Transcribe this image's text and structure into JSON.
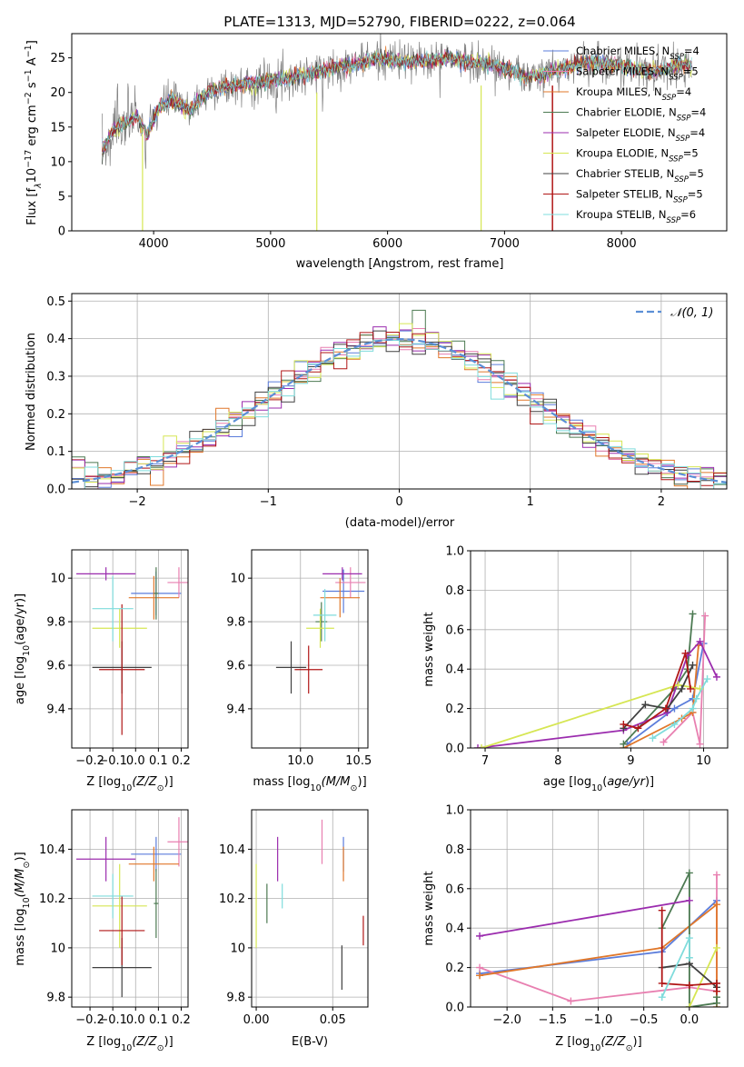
{
  "title": "PLATE=1313, MJD=52790, FIBERID=0222, z=0.064",
  "colors": {
    "Chabrier MILES": "#5b7ddb",
    "Salpeter MILES": "#e87fb0",
    "Kroupa MILES": "#e0772a",
    "Chabrier ELODIE": "#4c7a52",
    "Salpeter ELODIE": "#9b2cae",
    "Kroupa ELODIE": "#d6e653",
    "Chabrier STELIB": "#404040",
    "Salpeter STELIB": "#b01616",
    "Kroupa STELIB": "#7fdcdc"
  },
  "chart_data": [
    {
      "id": "spectrum",
      "type": "line",
      "xlabel": "wavelength [Angstrom, rest frame]",
      "ylabel_pre": "Flux [f",
      "ylabel_sub1": "λ",
      "ylabel_mid": "10",
      "ylabel_sup1": "−17",
      "ylabel_mid2": " erg cm",
      "ylabel_sup2": "−2",
      "ylabel_mid3": " s",
      "ylabel_sup3": "−1",
      "ylabel_mid4": " A",
      "ylabel_sup4": "−1",
      "ylabel_end": "]",
      "xlim": [
        3300,
        8900
      ],
      "ylim": [
        0,
        28.5
      ],
      "xticks": [
        4000,
        5000,
        6000,
        7000,
        8000
      ],
      "yticks": [
        0,
        5,
        10,
        15,
        20,
        25
      ],
      "legend_loc": "right",
      "legend": [
        {
          "name": "Chabrier MILES",
          "nssp": "4"
        },
        {
          "name": "Salpeter MILES",
          "nssp": "5"
        },
        {
          "name": "Kroupa MILES",
          "nssp": "4"
        },
        {
          "name": "Chabrier ELODIE",
          "nssp": "4"
        },
        {
          "name": "Salpeter ELODIE",
          "nssp": "4"
        },
        {
          "name": "Kroupa ELODIE",
          "nssp": "5"
        },
        {
          "name": "Chabrier STELIB",
          "nssp": "5"
        },
        {
          "name": "Salpeter STELIB",
          "nssp": "5"
        },
        {
          "name": "Kroupa STELIB",
          "nssp": "6"
        }
      ],
      "legend_fmt": ", N",
      "legend_sub": "SSP",
      "legend_eq": "=",
      "continuum": {
        "x": [
          3560,
          3650,
          3750,
          3850,
          3950,
          4050,
          4150,
          4300,
          4500,
          4700,
          4900,
          5100,
          5300,
          5500,
          5700,
          5900,
          6100,
          6300,
          6500,
          6700,
          6900,
          7100,
          7200,
          7300,
          7500,
          7700,
          7900,
          8100,
          8300,
          8500,
          8600
        ],
        "y": [
          11.5,
          14.5,
          15.5,
          16.5,
          14.0,
          18.0,
          19.0,
          17.5,
          20.5,
          21.0,
          21.5,
          22.0,
          22.5,
          23.5,
          24.0,
          25.0,
          24.5,
          24.5,
          25.0,
          24.5,
          24.0,
          23.0,
          22.0,
          22.5,
          23.5,
          24.5,
          24.0,
          23.5,
          23.0,
          24.0,
          24.0
        ]
      }
    },
    {
      "id": "residuals",
      "type": "histogram",
      "xlabel": "(data-model)/error",
      "ylabel": "Normed distribution",
      "xlim": [
        -2.5,
        2.5
      ],
      "ylim": [
        0,
        0.52
      ],
      "xticks": [
        -2,
        -1,
        0,
        1,
        2
      ],
      "xticklabels": [
        "−2",
        "−1",
        "0",
        "1",
        "2"
      ],
      "yticks": [
        0.0,
        0.1,
        0.2,
        0.3,
        0.4,
        0.5
      ],
      "yticklabels": [
        "0.0",
        "0.1",
        "0.2",
        "0.3",
        "0.4",
        "0.5"
      ],
      "bin_width": 0.1,
      "legend_label": "𝒩(0, 1)",
      "legend_loc": "upper right"
    },
    {
      "id": "age-vs-Z",
      "type": "errorbar",
      "xlabel_pre": "Z [log",
      "xlabel_sub": "10",
      "xlabel_end": "(Z/Z",
      "ylabel_pre": "age  [log",
      "ylabel_sub": "10",
      "ylabel_end": "(age/yr)]",
      "xlim": [
        -0.28,
        0.23
      ],
      "ylim": [
        9.22,
        10.13
      ],
      "xticks": [
        -0.2,
        -0.1,
        0.0,
        0.1,
        0.2
      ],
      "xticklabels": [
        "−0.2",
        "−0.1",
        "0.0",
        "0.1",
        "0.2"
      ],
      "yticks": [
        9.4,
        9.6,
        9.8,
        10.0
      ],
      "points": [
        {
          "name": "Chabrier MILES",
          "x": 0.09,
          "xerr": 0.11,
          "y": 9.93,
          "yerr": 0.1
        },
        {
          "name": "Salpeter MILES",
          "x": 0.19,
          "xerr": 0.05,
          "y": 9.98,
          "yerr": 0.07
        },
        {
          "name": "Kroupa MILES",
          "x": 0.08,
          "xerr": 0.11,
          "y": 9.91,
          "yerr": 0.1
        },
        {
          "name": "Chabrier ELODIE",
          "x": 0.09,
          "xerr": 0.01,
          "y": 9.93,
          "yerr": 0.12
        },
        {
          "name": "Salpeter ELODIE",
          "x": -0.13,
          "xerr": 0.13,
          "y": 10.02,
          "yerr": 0.03
        },
        {
          "name": "Kroupa ELODIE",
          "x": -0.07,
          "xerr": 0.12,
          "y": 9.77,
          "yerr": 0.09
        },
        {
          "name": "Chabrier STELIB",
          "x": -0.06,
          "xerr": 0.13,
          "y": 9.59,
          "yerr": 0.12
        },
        {
          "name": "Salpeter STELIB",
          "x": -0.06,
          "xerr": 0.1,
          "y": 9.58,
          "yerr": 0.3
        },
        {
          "name": "Kroupa STELIB",
          "x": -0.1,
          "xerr": 0.09,
          "y": 9.86,
          "yerr": 0.15
        }
      ]
    },
    {
      "id": "age-vs-mass",
      "type": "errorbar",
      "xlabel_pre": "mass [log",
      "xlabel_sub": "10",
      "xlabel_end": "(M/M",
      "xlim": [
        9.58,
        10.58
      ],
      "ylim": [
        9.22,
        10.13
      ],
      "xticks": [
        10.0,
        10.5
      ],
      "xticklabels": [
        "10.0",
        "10.5"
      ],
      "yticks": [
        9.4,
        9.6,
        9.8,
        10.0
      ],
      "points": [
        {
          "name": "Chabrier MILES",
          "x": 10.37,
          "xerr": 0.18,
          "y": 9.94,
          "yerr": 0.1
        },
        {
          "name": "Salpeter MILES",
          "x": 10.43,
          "xerr": 0.13,
          "y": 9.98,
          "yerr": 0.07
        },
        {
          "name": "Kroupa MILES",
          "x": 10.34,
          "xerr": 0.17,
          "y": 9.91,
          "yerr": 0.09
        },
        {
          "name": "Chabrier ELODIE",
          "x": 10.18,
          "xerr": 0.05,
          "y": 9.8,
          "yerr": 0.09
        },
        {
          "name": "Salpeter ELODIE",
          "x": 10.36,
          "xerr": 0.17,
          "y": 10.02,
          "yerr": 0.03
        },
        {
          "name": "Kroupa ELODIE",
          "x": 10.17,
          "xerr": 0.12,
          "y": 9.77,
          "yerr": 0.09
        },
        {
          "name": "Chabrier STELIB",
          "x": 9.92,
          "xerr": 0.13,
          "y": 9.59,
          "yerr": 0.12
        },
        {
          "name": "Salpeter STELIB",
          "x": 10.07,
          "xerr": 0.12,
          "y": 9.58,
          "yerr": 0.11
        },
        {
          "name": "Kroupa STELIB",
          "x": 10.21,
          "xerr": 0.1,
          "y": 9.83,
          "yerr": 0.12
        }
      ]
    },
    {
      "id": "weight-vs-age",
      "type": "line",
      "xlabel_pre": "age  [log",
      "xlabel_sub": "10",
      "xlabel_end": "(age/yr)]",
      "ylabel": "mass weight",
      "xlim": [
        6.8,
        10.33
      ],
      "ylim": [
        0,
        1
      ],
      "xticks": [
        7,
        8,
        9,
        10
      ],
      "yticks": [
        0.0,
        0.2,
        0.4,
        0.6,
        0.8,
        1.0
      ],
      "yticklabels": [
        "0.0",
        "0.2",
        "0.4",
        "0.6",
        "0.8",
        "1.0"
      ],
      "series": [
        {
          "name": "Chabrier MILES",
          "x": [
            8.95,
            9.6,
            9.85,
            10.0
          ],
          "y": [
            0.02,
            0.2,
            0.25,
            0.53
          ]
        },
        {
          "name": "Salpeter MILES",
          "x": [
            9.45,
            9.85,
            9.95,
            10.02
          ],
          "y": [
            0.03,
            0.18,
            0.02,
            0.67
          ]
        },
        {
          "name": "Kroupa MILES",
          "x": [
            8.9,
            9.7,
            9.85,
            9.93
          ],
          "y": [
            0.0,
            0.15,
            0.18,
            0.52
          ]
        },
        {
          "name": "Chabrier ELODIE",
          "x": [
            8.9,
            9.6,
            9.78,
            9.85
          ],
          "y": [
            0.02,
            0.3,
            0.4,
            0.68
          ]
        },
        {
          "name": "Salpeter ELODIE",
          "x": [
            6.9,
            8.9,
            9.5,
            9.78,
            9.95,
            10.18
          ],
          "y": [
            0.0,
            0.09,
            0.18,
            0.47,
            0.54,
            0.36
          ]
        },
        {
          "name": "Kroupa ELODIE",
          "x": [
            6.95,
            9.65,
            9.95
          ],
          "y": [
            0.0,
            0.32,
            0.3
          ]
        },
        {
          "name": "Chabrier STELIB",
          "x": [
            8.9,
            9.2,
            9.5,
            9.7,
            9.85
          ],
          "y": [
            0.1,
            0.22,
            0.2,
            0.3,
            0.42
          ]
        },
        {
          "name": "Salpeter STELIB",
          "x": [
            8.9,
            9.1,
            9.48,
            9.75,
            9.82
          ],
          "y": [
            0.12,
            0.1,
            0.2,
            0.48,
            0.3
          ]
        },
        {
          "name": "Kroupa STELIB",
          "x": [
            9.3,
            9.6,
            9.85,
            9.9,
            10.05
          ],
          "y": [
            0.05,
            0.12,
            0.2,
            0.25,
            0.35
          ]
        }
      ]
    },
    {
      "id": "mass-vs-Z",
      "type": "errorbar",
      "xlabel_pre": "Z [log",
      "xlabel_sub": "10",
      "xlabel_end": "(Z/Z",
      "ylabel_pre": "mass [log",
      "ylabel_sub": "10",
      "ylabel_end": "(M/M",
      "xlim": [
        -0.28,
        0.23
      ],
      "ylim": [
        9.76,
        10.56
      ],
      "xticks": [
        -0.2,
        -0.1,
        0.0,
        0.1,
        0.2
      ],
      "xticklabels": [
        "−0.2",
        "−0.1",
        "0.0",
        "0.1",
        "0.2"
      ],
      "yticks": [
        9.8,
        10.0,
        10.2,
        10.4
      ],
      "points": [
        {
          "name": "Chabrier MILES",
          "x": 0.09,
          "xerr": 0.11,
          "y": 10.38,
          "yerr": 0.07
        },
        {
          "name": "Salpeter MILES",
          "x": 0.19,
          "xerr": 0.05,
          "y": 10.43,
          "yerr": 0.1
        },
        {
          "name": "Kroupa MILES",
          "x": 0.08,
          "xerr": 0.11,
          "y": 10.34,
          "yerr": 0.07
        },
        {
          "name": "Chabrier ELODIE",
          "x": 0.09,
          "xerr": 0.01,
          "y": 10.18,
          "yerr": 0.14
        },
        {
          "name": "Salpeter ELODIE",
          "x": -0.13,
          "xerr": 0.13,
          "y": 10.36,
          "yerr": 0.09
        },
        {
          "name": "Kroupa ELODIE",
          "x": -0.07,
          "xerr": 0.12,
          "y": 10.17,
          "yerr": 0.17
        },
        {
          "name": "Chabrier STELIB",
          "x": -0.06,
          "xerr": 0.13,
          "y": 9.92,
          "yerr": 0.12
        },
        {
          "name": "Salpeter STELIB",
          "x": -0.06,
          "xerr": 0.1,
          "y": 10.07,
          "yerr": 0.14
        },
        {
          "name": "Kroupa STELIB",
          "x": -0.1,
          "xerr": 0.09,
          "y": 10.21,
          "yerr": 0.09
        }
      ]
    },
    {
      "id": "mass-vs-EBV",
      "type": "errorbar",
      "xlabel": "E(B-V)",
      "xlim": [
        -0.003,
        0.073
      ],
      "ylim": [
        9.76,
        10.56
      ],
      "xticks": [
        0.0,
        0.05
      ],
      "xticklabels": [
        "0.00",
        "0.05"
      ],
      "yticks": [
        9.8,
        10.0,
        10.2,
        10.4
      ],
      "points": [
        {
          "name": "Chabrier MILES",
          "x": 0.057,
          "xerr": 0.0,
          "y": 10.38,
          "yerr": 0.07
        },
        {
          "name": "Salpeter MILES",
          "x": 0.043,
          "xerr": 0.0,
          "y": 10.43,
          "yerr": 0.09
        },
        {
          "name": "Kroupa MILES",
          "x": 0.057,
          "xerr": 0.0,
          "y": 10.34,
          "yerr": 0.07
        },
        {
          "name": "Chabrier ELODIE",
          "x": 0.007,
          "xerr": 0.0,
          "y": 10.18,
          "yerr": 0.08
        },
        {
          "name": "Salpeter ELODIE",
          "x": 0.014,
          "xerr": 0.0,
          "y": 10.36,
          "yerr": 0.09
        },
        {
          "name": "Kroupa ELODIE",
          "x": 0.0,
          "xerr": 0.0,
          "y": 10.17,
          "yerr": 0.17
        },
        {
          "name": "Chabrier STELIB",
          "x": 0.056,
          "xerr": 0.0,
          "y": 9.92,
          "yerr": 0.09
        },
        {
          "name": "Salpeter STELIB",
          "x": 0.07,
          "xerr": 0.0,
          "y": 10.07,
          "yerr": 0.06
        },
        {
          "name": "Kroupa STELIB",
          "x": 0.017,
          "xerr": 0.0,
          "y": 10.21,
          "yerr": 0.05
        }
      ]
    },
    {
      "id": "weight-vs-Z",
      "type": "line",
      "xlabel_pre": "Z [log",
      "xlabel_sub": "10",
      "xlabel_end": "(Z/Z",
      "ylabel": "mass weight",
      "xlim": [
        -2.4,
        0.42
      ],
      "ylim": [
        0,
        1
      ],
      "xticks": [
        -2.0,
        -1.5,
        -1.0,
        -0.5,
        0.0
      ],
      "xticklabels": [
        "−2.0",
        "−1.5",
        "−1.0",
        "−0.5",
        "0.0"
      ],
      "yticks": [
        0.0,
        0.2,
        0.4,
        0.6,
        0.8,
        1.0
      ],
      "yticklabels": [
        "0.0",
        "0.2",
        "0.4",
        "0.6",
        "0.8",
        "1.0"
      ],
      "series": [
        {
          "name": "Chabrier MILES",
          "x": [
            -2.3,
            -0.3,
            0.3
          ],
          "y": [
            0.17,
            0.28,
            0.54
          ]
        },
        {
          "name": "Salpeter MILES",
          "x": [
            -2.3,
            -1.3,
            0.0,
            0.3,
            0.3
          ],
          "y": [
            0.2,
            0.03,
            0.1,
            0.08,
            0.67
          ]
        },
        {
          "name": "Kroupa MILES",
          "x": [
            -2.3,
            -0.3,
            0.3,
            0.3
          ],
          "y": [
            0.16,
            0.3,
            0.52,
            0.0
          ]
        },
        {
          "name": "Chabrier ELODIE",
          "x": [
            -0.3,
            0.0,
            0.0,
            0.3,
            0.3
          ],
          "y": [
            0.4,
            0.68,
            0.0,
            0.02,
            0.05
          ]
        },
        {
          "name": "Salpeter ELODIE",
          "x": [
            -2.3,
            0.0
          ],
          "y": [
            0.36,
            0.54
          ]
        },
        {
          "name": "Kroupa ELODIE",
          "x": [
            0.0,
            0.3
          ],
          "y": [
            0.0,
            0.3
          ]
        },
        {
          "name": "Chabrier STELIB",
          "x": [
            -0.3,
            0.0,
            0.3,
            0.3
          ],
          "y": [
            0.2,
            0.22,
            0.1,
            0.12
          ]
        },
        {
          "name": "Salpeter STELIB",
          "x": [
            -0.3,
            -0.3,
            0.0,
            0.3,
            0.3
          ],
          "y": [
            0.49,
            0.12,
            0.11,
            0.12,
            0.08
          ]
        },
        {
          "name": "Kroupa STELIB",
          "x": [
            -0.3,
            0.0,
            0.0
          ],
          "y": [
            0.05,
            0.35,
            0.25
          ]
        }
      ]
    }
  ]
}
